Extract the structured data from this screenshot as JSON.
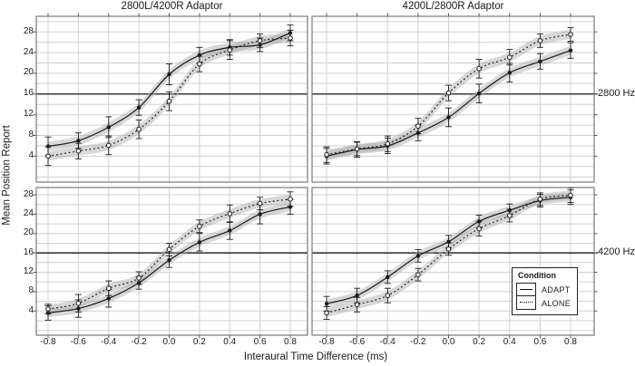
{
  "figure": {
    "column_titles": [
      "2800L/4200R Adaptor",
      "4200L/2800R Adaptor"
    ],
    "row_labels": [
      "2800 Hz",
      "4200 Hz"
    ],
    "y_axis_title": "Mean Position Report",
    "x_axis_title": "Interaural Time Difference (ms)",
    "reference_line_y": 16
  },
  "legend": {
    "title": "Condition",
    "items": [
      {
        "label": "ADAPT",
        "line_style": "solid"
      },
      {
        "label": "ALONE",
        "line_style": "dotted"
      }
    ]
  },
  "axes": {
    "x_ticks": [
      "-0.8",
      "-0.6",
      "-0.4",
      "-0.2",
      "0.0",
      "0.2",
      "0.4",
      "0.6",
      "0.8"
    ],
    "y_ticks": [
      "4",
      "8",
      "12",
      "16",
      "20",
      "24",
      "28"
    ],
    "grid": true
  },
  "colors": {
    "line": "#1a1a1a",
    "band": "#a8a8a8",
    "grid": "#d0d0d0",
    "panel_border": "#7a7a7a",
    "reference_line": "#000000",
    "text": "#1a1a1a",
    "background": "#ffffff"
  },
  "chart_data": [
    {
      "type": "line",
      "panel": "top-left",
      "title": "2800L/4200R Adaptor",
      "row_label": "2800 Hz",
      "x": [
        -0.8,
        -0.6,
        -0.4,
        -0.2,
        0.0,
        0.2,
        0.4,
        0.6,
        0.8
      ],
      "ylim": [
        -1,
        31
      ],
      "reference_y": 16,
      "band_halfwidth": 0.9,
      "series": [
        {
          "name": "ADAPT",
          "style": "solid",
          "marker": "filled-circle",
          "values": [
            5.9,
            7.0,
            9.6,
            13.4,
            19.8,
            23.5,
            25.0,
            25.5,
            27.8
          ],
          "errors": [
            1.8,
            1.5,
            2.0,
            1.5,
            2.0,
            1.5,
            1.5,
            1.3,
            1.5
          ]
        },
        {
          "name": "ALONE",
          "style": "dotted",
          "marker": "open-circle",
          "values": [
            4.0,
            5.0,
            6.1,
            9.2,
            14.6,
            21.8,
            24.5,
            26.3,
            26.8
          ],
          "errors": [
            1.8,
            1.5,
            1.8,
            1.8,
            1.8,
            1.5,
            1.8,
            1.3,
            1.5
          ]
        }
      ]
    },
    {
      "type": "line",
      "panel": "top-right",
      "title": "4200L/2800R Adaptor",
      "row_label": "2800 Hz",
      "x": [
        -0.8,
        -0.6,
        -0.4,
        -0.2,
        0.0,
        0.2,
        0.4,
        0.6,
        0.8
      ],
      "ylim": [
        -1,
        31
      ],
      "reference_y": 16,
      "band_halfwidth": 0.9,
      "series": [
        {
          "name": "ADAPT",
          "style": "solid",
          "marker": "filled-circle",
          "values": [
            4.0,
            5.3,
            6.0,
            8.5,
            11.5,
            16.1,
            20.1,
            22.3,
            24.4
          ],
          "errors": [
            1.5,
            1.5,
            1.5,
            1.5,
            1.8,
            1.8,
            1.8,
            1.5,
            1.5
          ]
        },
        {
          "name": "ALONE",
          "style": "dotted",
          "marker": "open-circle",
          "values": [
            4.3,
            5.4,
            6.4,
            9.8,
            16.2,
            20.9,
            23.1,
            26.3,
            27.5
          ],
          "errors": [
            1.5,
            1.3,
            1.5,
            1.5,
            1.5,
            1.8,
            1.5,
            1.3,
            1.3
          ]
        }
      ]
    },
    {
      "type": "line",
      "panel": "bottom-left",
      "title": "2800L/4200R Adaptor",
      "row_label": "4200 Hz",
      "x": [
        -0.8,
        -0.6,
        -0.4,
        -0.2,
        0.0,
        0.2,
        0.4,
        0.6,
        0.8
      ],
      "ylim": [
        -1,
        29.5
      ],
      "reference_y": 16,
      "band_halfwidth": 0.9,
      "series": [
        {
          "name": "ADAPT",
          "style": "solid",
          "marker": "filled-circle",
          "values": [
            3.6,
            4.5,
            6.6,
            9.8,
            14.5,
            18.2,
            20.6,
            24.0,
            25.5
          ],
          "errors": [
            1.5,
            1.8,
            1.8,
            1.3,
            1.5,
            1.8,
            1.8,
            2.0,
            1.5
          ]
        },
        {
          "name": "ALONE",
          "style": "dotted",
          "marker": "open-circle",
          "values": [
            4.4,
            5.6,
            8.7,
            10.8,
            16.7,
            21.5,
            24.1,
            26.2,
            27.1
          ],
          "errors": [
            1.0,
            1.8,
            1.5,
            1.3,
            1.3,
            1.3,
            1.8,
            1.3,
            1.5
          ]
        }
      ]
    },
    {
      "type": "line",
      "panel": "bottom-right",
      "title": "4200L/2800R Adaptor",
      "row_label": "4200 Hz",
      "x": [
        -0.8,
        -0.6,
        -0.4,
        -0.2,
        0.0,
        0.2,
        0.4,
        0.6,
        0.8
      ],
      "ylim": [
        -1,
        29.5
      ],
      "reference_y": 16,
      "band_halfwidth": 0.9,
      "series": [
        {
          "name": "ADAPT",
          "style": "solid",
          "marker": "filled-circle",
          "values": [
            5.5,
            7.2,
            11.0,
            15.4,
            18.3,
            22.5,
            24.8,
            26.8,
            27.5
          ],
          "errors": [
            1.5,
            1.5,
            1.3,
            1.3,
            1.3,
            1.3,
            1.3,
            1.3,
            1.5
          ]
        },
        {
          "name": "ALONE",
          "style": "dotted",
          "marker": "open-circle",
          "values": [
            3.6,
            5.3,
            7.2,
            11.5,
            16.8,
            21.0,
            23.7,
            27.1,
            27.9
          ],
          "errors": [
            1.3,
            1.5,
            1.5,
            1.3,
            1.3,
            1.5,
            1.3,
            1.3,
            1.5
          ]
        }
      ]
    }
  ]
}
